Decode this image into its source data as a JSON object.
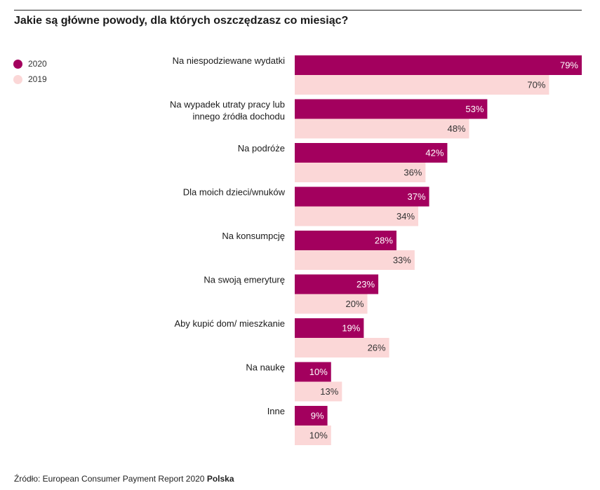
{
  "title": "Jakie są główne powody, dla których oszczędzasz co miesiąc?",
  "source": {
    "text": "Źródło: European Consumer Payment Report 2020 ",
    "bold": "Polska"
  },
  "colors": {
    "series_2020": "#a3005e",
    "series_2019": "#fbd7d7",
    "label_on_dark": "#ffffff",
    "label_on_light": "#333333"
  },
  "chart_data": {
    "type": "bar",
    "orientation": "horizontal",
    "categories": [
      [
        "Na niespodziewane wydatki"
      ],
      [
        "Na wypadek utraty pracy lub",
        "innego źródła dochodu"
      ],
      [
        "Na podróże"
      ],
      [
        "Dla moich dzieci/wnuków"
      ],
      [
        "Na konsumpcję"
      ],
      [
        "Na swoją emeryturę"
      ],
      [
        "Aby kupić dom/ mieszkanie"
      ],
      [
        "Na naukę"
      ],
      [
        "Inne"
      ]
    ],
    "series": [
      {
        "name": "2020",
        "values": [
          79,
          53,
          42,
          37,
          28,
          23,
          19,
          10,
          9
        ]
      },
      {
        "name": "2019",
        "values": [
          70,
          48,
          36,
          34,
          33,
          20,
          26,
          13,
          10
        ]
      }
    ],
    "value_suffix": "%",
    "xlim": [
      0,
      79
    ],
    "legend_position": "top-left",
    "grid": false
  }
}
